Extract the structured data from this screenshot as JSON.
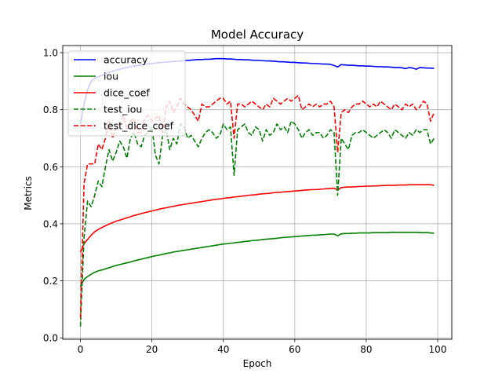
{
  "chart_data": {
    "type": "line",
    "title": "Model Accuracy",
    "xlabel": "Epoch",
    "ylabel": "Metrics",
    "xlim": [
      -4.95,
      103.95
    ],
    "ylim": [
      -0.005,
      1.025
    ],
    "xticks": [
      0,
      20,
      40,
      60,
      80,
      100
    ],
    "yticks": [
      0.0,
      0.2,
      0.4,
      0.6,
      0.8,
      1.0
    ],
    "grid": true,
    "legend_position": "top-left",
    "x": [
      0,
      1,
      2,
      3,
      4,
      5,
      6,
      7,
      8,
      9,
      10,
      11,
      12,
      13,
      14,
      15,
      16,
      17,
      18,
      19,
      20,
      21,
      22,
      23,
      24,
      25,
      26,
      27,
      28,
      29,
      30,
      31,
      32,
      33,
      34,
      35,
      36,
      37,
      38,
      39,
      40,
      41,
      42,
      43,
      44,
      45,
      46,
      47,
      48,
      49,
      50,
      51,
      52,
      53,
      54,
      55,
      56,
      57,
      58,
      59,
      60,
      61,
      62,
      63,
      64,
      65,
      66,
      67,
      68,
      69,
      70,
      71,
      72,
      73,
      74,
      75,
      76,
      77,
      78,
      79,
      80,
      81,
      82,
      83,
      84,
      85,
      86,
      87,
      88,
      89,
      90,
      91,
      92,
      93,
      94,
      95,
      96,
      97,
      98,
      99
    ],
    "series": [
      {
        "name": "accuracy",
        "color": "#0000ff",
        "dash": "solid",
        "values": [
          0.75,
          0.82,
          0.87,
          0.9,
          0.91,
          0.915,
          0.92,
          0.926,
          0.931,
          0.935,
          0.939,
          0.942,
          0.945,
          0.948,
          0.951,
          0.953,
          0.955,
          0.957,
          0.959,
          0.961,
          0.962,
          0.964,
          0.965,
          0.966,
          0.967,
          0.968,
          0.969,
          0.97,
          0.971,
          0.972,
          0.973,
          0.974,
          0.975,
          0.976,
          0.976,
          0.977,
          0.977,
          0.978,
          0.979,
          0.979,
          0.979,
          0.978,
          0.978,
          0.977,
          0.976,
          0.976,
          0.975,
          0.975,
          0.974,
          0.973,
          0.973,
          0.972,
          0.971,
          0.971,
          0.97,
          0.969,
          0.968,
          0.968,
          0.967,
          0.966,
          0.966,
          0.965,
          0.964,
          0.964,
          0.963,
          0.962,
          0.962,
          0.961,
          0.96,
          0.96,
          0.959,
          0.955,
          0.95,
          0.958,
          0.957,
          0.956,
          0.956,
          0.955,
          0.954,
          0.954,
          0.953,
          0.953,
          0.952,
          0.951,
          0.951,
          0.95,
          0.95,
          0.949,
          0.948,
          0.948,
          0.947,
          0.944,
          0.948,
          0.946,
          0.942,
          0.948,
          0.947,
          0.946,
          0.946,
          0.945
        ]
      },
      {
        "name": "iou",
        "color": "#008000",
        "dash": "solid",
        "values": [
          0.18,
          0.205,
          0.215,
          0.223,
          0.23,
          0.235,
          0.238,
          0.242,
          0.246,
          0.25,
          0.254,
          0.257,
          0.26,
          0.263,
          0.266,
          0.27,
          0.273,
          0.276,
          0.279,
          0.282,
          0.285,
          0.288,
          0.29,
          0.293,
          0.296,
          0.298,
          0.301,
          0.303,
          0.305,
          0.307,
          0.309,
          0.311,
          0.313,
          0.315,
          0.317,
          0.319,
          0.321,
          0.323,
          0.325,
          0.327,
          0.329,
          0.33,
          0.332,
          0.333,
          0.335,
          0.336,
          0.338,
          0.339,
          0.341,
          0.342,
          0.343,
          0.345,
          0.346,
          0.347,
          0.348,
          0.349,
          0.351,
          0.352,
          0.353,
          0.354,
          0.355,
          0.356,
          0.357,
          0.358,
          0.359,
          0.36,
          0.36,
          0.361,
          0.362,
          0.363,
          0.364,
          0.364,
          0.358,
          0.365,
          0.366,
          0.366,
          0.367,
          0.367,
          0.368,
          0.368,
          0.368,
          0.368,
          0.369,
          0.369,
          0.369,
          0.369,
          0.369,
          0.37,
          0.37,
          0.37,
          0.37,
          0.37,
          0.37,
          0.37,
          0.37,
          0.369,
          0.369,
          0.369,
          0.368,
          0.367
        ]
      },
      {
        "name": "dice_coef",
        "color": "#ff0000",
        "dash": "solid",
        "values": [
          0.3,
          0.33,
          0.345,
          0.36,
          0.372,
          0.38,
          0.387,
          0.393,
          0.399,
          0.404,
          0.409,
          0.413,
          0.417,
          0.421,
          0.425,
          0.429,
          0.432,
          0.436,
          0.439,
          0.442,
          0.445,
          0.448,
          0.451,
          0.454,
          0.456,
          0.459,
          0.461,
          0.464,
          0.466,
          0.468,
          0.47,
          0.472,
          0.474,
          0.476,
          0.478,
          0.48,
          0.482,
          0.484,
          0.486,
          0.487,
          0.489,
          0.491,
          0.492,
          0.494,
          0.495,
          0.497,
          0.498,
          0.5,
          0.501,
          0.502,
          0.504,
          0.505,
          0.506,
          0.507,
          0.509,
          0.51,
          0.511,
          0.512,
          0.513,
          0.514,
          0.515,
          0.516,
          0.517,
          0.518,
          0.519,
          0.52,
          0.52,
          0.521,
          0.522,
          0.523,
          0.524,
          0.525,
          0.518,
          0.527,
          0.528,
          0.529,
          0.529,
          0.53,
          0.531,
          0.531,
          0.532,
          0.532,
          0.533,
          0.533,
          0.534,
          0.534,
          0.535,
          0.535,
          0.535,
          0.536,
          0.536,
          0.536,
          0.537,
          0.537,
          0.537,
          0.537,
          0.537,
          0.537,
          0.537,
          0.535
        ]
      },
      {
        "name": "test_iou",
        "color": "#008000",
        "dash": "dashed",
        "values": [
          0.04,
          0.35,
          0.48,
          0.46,
          0.5,
          0.55,
          0.53,
          0.6,
          0.66,
          0.62,
          0.65,
          0.69,
          0.67,
          0.63,
          0.7,
          0.72,
          0.68,
          0.67,
          0.71,
          0.72,
          0.74,
          0.64,
          0.61,
          0.71,
          0.73,
          0.66,
          0.7,
          0.68,
          0.75,
          0.74,
          0.7,
          0.71,
          0.69,
          0.67,
          0.7,
          0.72,
          0.73,
          0.72,
          0.7,
          0.71,
          0.75,
          0.73,
          0.74,
          0.57,
          0.73,
          0.74,
          0.75,
          0.72,
          0.71,
          0.74,
          0.73,
          0.69,
          0.73,
          0.71,
          0.72,
          0.75,
          0.73,
          0.74,
          0.72,
          0.76,
          0.75,
          0.73,
          0.7,
          0.72,
          0.73,
          0.71,
          0.72,
          0.72,
          0.7,
          0.71,
          0.73,
          0.72,
          0.5,
          0.7,
          0.68,
          0.66,
          0.71,
          0.72,
          0.72,
          0.73,
          0.72,
          0.71,
          0.7,
          0.71,
          0.72,
          0.73,
          0.72,
          0.7,
          0.73,
          0.72,
          0.71,
          0.7,
          0.72,
          0.71,
          0.73,
          0.72,
          0.73,
          0.73,
          0.68,
          0.7
        ]
      },
      {
        "name": "test_dice_coef",
        "color": "#ff0000",
        "dash": "dashed",
        "values": [
          0.07,
          0.54,
          0.61,
          0.61,
          0.61,
          0.68,
          0.66,
          0.7,
          0.76,
          0.7,
          0.74,
          0.75,
          0.78,
          0.73,
          0.76,
          0.77,
          0.72,
          0.72,
          0.77,
          0.78,
          0.76,
          0.77,
          0.78,
          0.72,
          0.81,
          0.83,
          0.79,
          0.81,
          0.84,
          0.82,
          0.81,
          0.8,
          0.78,
          0.76,
          0.82,
          0.81,
          0.81,
          0.82,
          0.83,
          0.84,
          0.84,
          0.82,
          0.83,
          0.7,
          0.82,
          0.82,
          0.81,
          0.82,
          0.83,
          0.82,
          0.81,
          0.8,
          0.82,
          0.81,
          0.84,
          0.83,
          0.82,
          0.83,
          0.84,
          0.83,
          0.84,
          0.85,
          0.8,
          0.81,
          0.82,
          0.81,
          0.82,
          0.81,
          0.82,
          0.82,
          0.83,
          0.81,
          0.65,
          0.79,
          0.8,
          0.79,
          0.81,
          0.82,
          0.82,
          0.83,
          0.82,
          0.81,
          0.82,
          0.81,
          0.83,
          0.82,
          0.81,
          0.8,
          0.82,
          0.81,
          0.8,
          0.82,
          0.81,
          0.82,
          0.8,
          0.81,
          0.83,
          0.82,
          0.76,
          0.79
        ]
      }
    ]
  }
}
